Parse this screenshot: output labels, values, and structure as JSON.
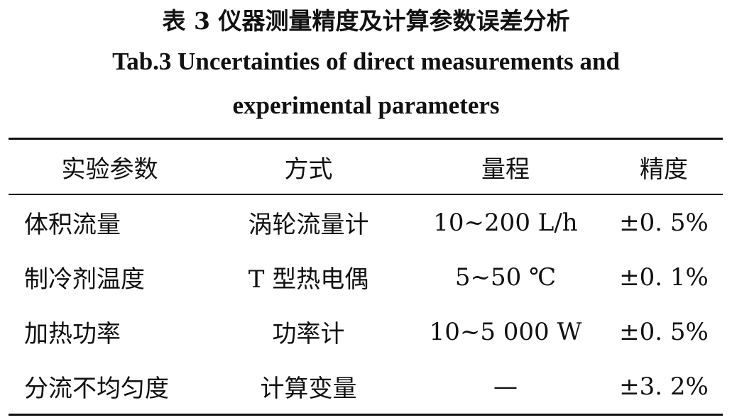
{
  "header": {
    "title_zh": "表 3 仪器测量精度及计算参数误差分析",
    "title_en": "Tab.3 Uncertainties of direct measurements and experimental parameters"
  },
  "table": {
    "columns": [
      "实验参数",
      "方式",
      "量程",
      "精度"
    ],
    "rows": [
      [
        "体积流量",
        "涡轮流量计",
        "10~200 L/h",
        "±0. 5%"
      ],
      [
        "制冷剂温度",
        "T 型热电偶",
        "5~50 ℃",
        "±0. 1%"
      ],
      [
        "加热功率",
        "功率计",
        "10~5 000 W",
        "±0. 5%"
      ],
      [
        "分流不均匀度",
        "计算变量",
        "—",
        "±3. 2%"
      ]
    ]
  }
}
